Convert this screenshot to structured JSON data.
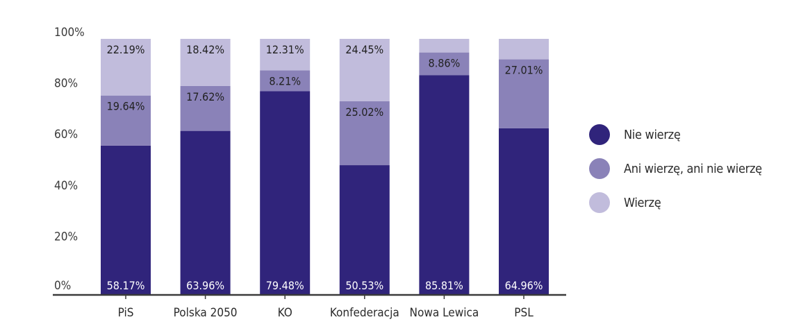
{
  "chart_data": {
    "type": "bar",
    "stacked": true,
    "categories": [
      "PiS",
      "Polska 2050",
      "KO",
      "Konfederacja",
      "Nowa Lewica",
      "PSL"
    ],
    "series": [
      {
        "name": "Nie wierzę",
        "color": "#30247b",
        "values": [
          58.17,
          63.96,
          79.48,
          50.53,
          85.81,
          64.96
        ],
        "labels": [
          "58.17%",
          "63.96%",
          "79.48%",
          "50.53%",
          "85.81%",
          "64.96%"
        ]
      },
      {
        "name": "Ani wierzę, ani nie wierzę",
        "color": "#8a82b8",
        "values": [
          19.64,
          17.62,
          8.21,
          25.02,
          8.86,
          27.01
        ],
        "labels": [
          "19.64%",
          "17.62%",
          "8.21%",
          "25.02%",
          "8.86%",
          "27.01%"
        ]
      },
      {
        "name": "Wierzę",
        "color": "#c1bcdc",
        "values": [
          22.19,
          18.42,
          12.31,
          24.45,
          5.33,
          8.03
        ],
        "labels": [
          "22.19%",
          "18.42%",
          "12.31%",
          "24.45%",
          "",
          ""
        ]
      }
    ],
    "ylim": [
      0,
      100
    ],
    "yticks": [
      "0%",
      "20%",
      "40%",
      "60%",
      "80%",
      "100%"
    ],
    "grid": false,
    "legend_position": "right"
  }
}
